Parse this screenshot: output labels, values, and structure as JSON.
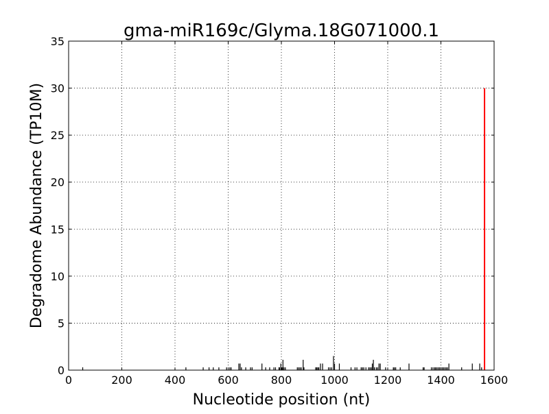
{
  "chart_data": {
    "type": "bar",
    "title": "gma-miR169c/Glyma.18G071000.1",
    "xlabel": "Nucleotide position (nt)",
    "ylabel": "Degradome Abundance (TP10M)",
    "xlim": [
      0,
      1600
    ],
    "ylim": [
      0,
      35
    ],
    "xticks": [
      "0",
      "200",
      "400",
      "600",
      "800",
      "1000",
      "1200",
      "1400",
      "1600"
    ],
    "yticks": [
      "0",
      "5",
      "10",
      "15",
      "20",
      "25",
      "30",
      "35"
    ],
    "grid": true,
    "background_series": {
      "color": "#000000",
      "x": [
        53,
        441,
        506,
        528,
        544,
        565,
        594,
        606,
        611,
        640,
        645,
        650,
        666,
        684,
        690,
        727,
        741,
        756,
        772,
        778,
        791,
        793,
        798,
        803,
        806,
        810,
        815,
        860,
        865,
        870,
        875,
        882,
        885,
        929,
        933,
        937,
        941,
        947,
        955,
        977,
        983,
        989,
        996,
        1000,
        1018,
        1062,
        1077,
        1084,
        1100,
        1105,
        1110,
        1118,
        1128,
        1133,
        1138,
        1142,
        1146,
        1150,
        1157,
        1162,
        1167,
        1172,
        1192,
        1221,
        1225,
        1230,
        1247,
        1280,
        1333,
        1337,
        1364,
        1370,
        1376,
        1380,
        1385,
        1390,
        1395,
        1400,
        1405,
        1410,
        1415,
        1420,
        1425,
        1430,
        1478,
        1518,
        1546,
        1553
      ],
      "y": [
        0.3,
        0.3,
        0.3,
        0.3,
        0.3,
        0.3,
        0.3,
        0.3,
        0.3,
        0.7,
        0.7,
        0.3,
        0.3,
        0.3,
        0.3,
        0.7,
        0.3,
        0.3,
        0.3,
        0.3,
        0.3,
        0.3,
        0.7,
        0.3,
        1.1,
        0.3,
        0.3,
        0.3,
        0.3,
        0.3,
        0.3,
        1.1,
        0.3,
        0.3,
        0.3,
        0.3,
        0.3,
        0.7,
        0.7,
        0.3,
        0.3,
        0.3,
        1.5,
        0.7,
        0.7,
        0.3,
        0.3,
        0.3,
        0.3,
        0.3,
        0.3,
        0.3,
        0.3,
        0.3,
        0.3,
        0.7,
        1.1,
        0.3,
        0.3,
        0.3,
        0.7,
        0.7,
        0.3,
        0.3,
        0.3,
        0.3,
        0.3,
        0.7,
        0.3,
        0.3,
        0.3,
        0.3,
        0.3,
        0.3,
        0.3,
        0.3,
        0.3,
        0.3,
        0.3,
        0.3,
        0.3,
        0.3,
        0.3,
        0.7,
        0.3,
        0.7,
        0.7,
        0.3
      ]
    },
    "target_site": {
      "color": "#ff0000",
      "x": 1564,
      "y": 30
    }
  }
}
